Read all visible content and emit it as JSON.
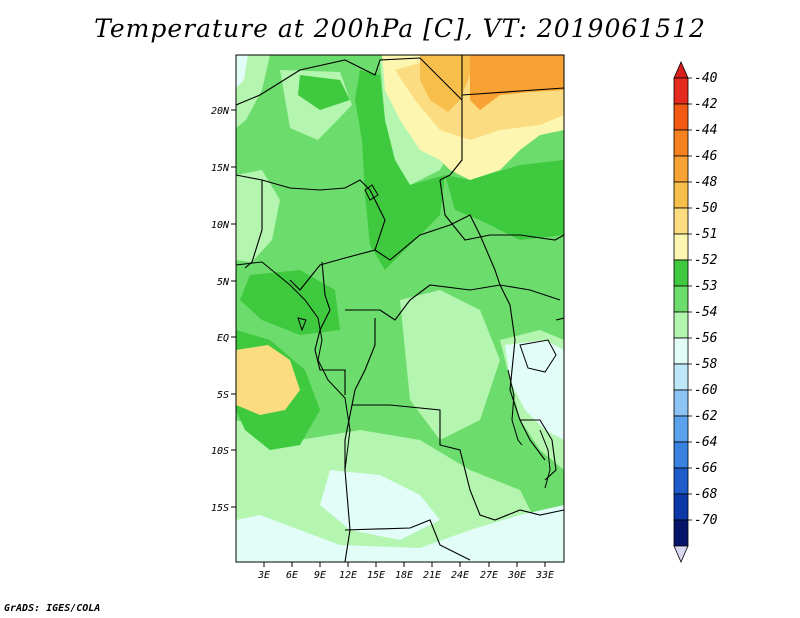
{
  "title": "Temperature at 200hPa [C], VT: 2019061512",
  "footer": "GrADS: IGES/COLA",
  "map": {
    "lat_labels": [
      "20N",
      "15N",
      "10N",
      "5N",
      "EQ",
      "5S",
      "10S",
      "15S"
    ],
    "lon_labels": [
      "3E",
      "6E",
      "9E",
      "12E",
      "15E",
      "18E",
      "21E",
      "24E",
      "27E",
      "30E",
      "33E"
    ]
  },
  "legend": {
    "labels": [
      "-40",
      "-42",
      "-44",
      "-46",
      "-48",
      "-50",
      "-51",
      "-52",
      "-53",
      "-54",
      "-56",
      "-58",
      "-60",
      "-62",
      "-64",
      "-66",
      "-68",
      "-70"
    ],
    "colors": [
      "#e62a1e",
      "#f25a14",
      "#f5821e",
      "#f7a232",
      "#f8be4c",
      "#fbdc80",
      "#fcf6b0",
      "#3ec93e",
      "#6cdc6c",
      "#b4f5b0",
      "#e2fcf8",
      "#bee8f8",
      "#8cc2f4",
      "#5aa2ec",
      "#3a82e2",
      "#1e5ccc",
      "#0c38a8",
      "#06146a"
    ],
    "top_cap_color": "#d81e1e",
    "bottom_cap_color": "#d8d8f0"
  }
}
